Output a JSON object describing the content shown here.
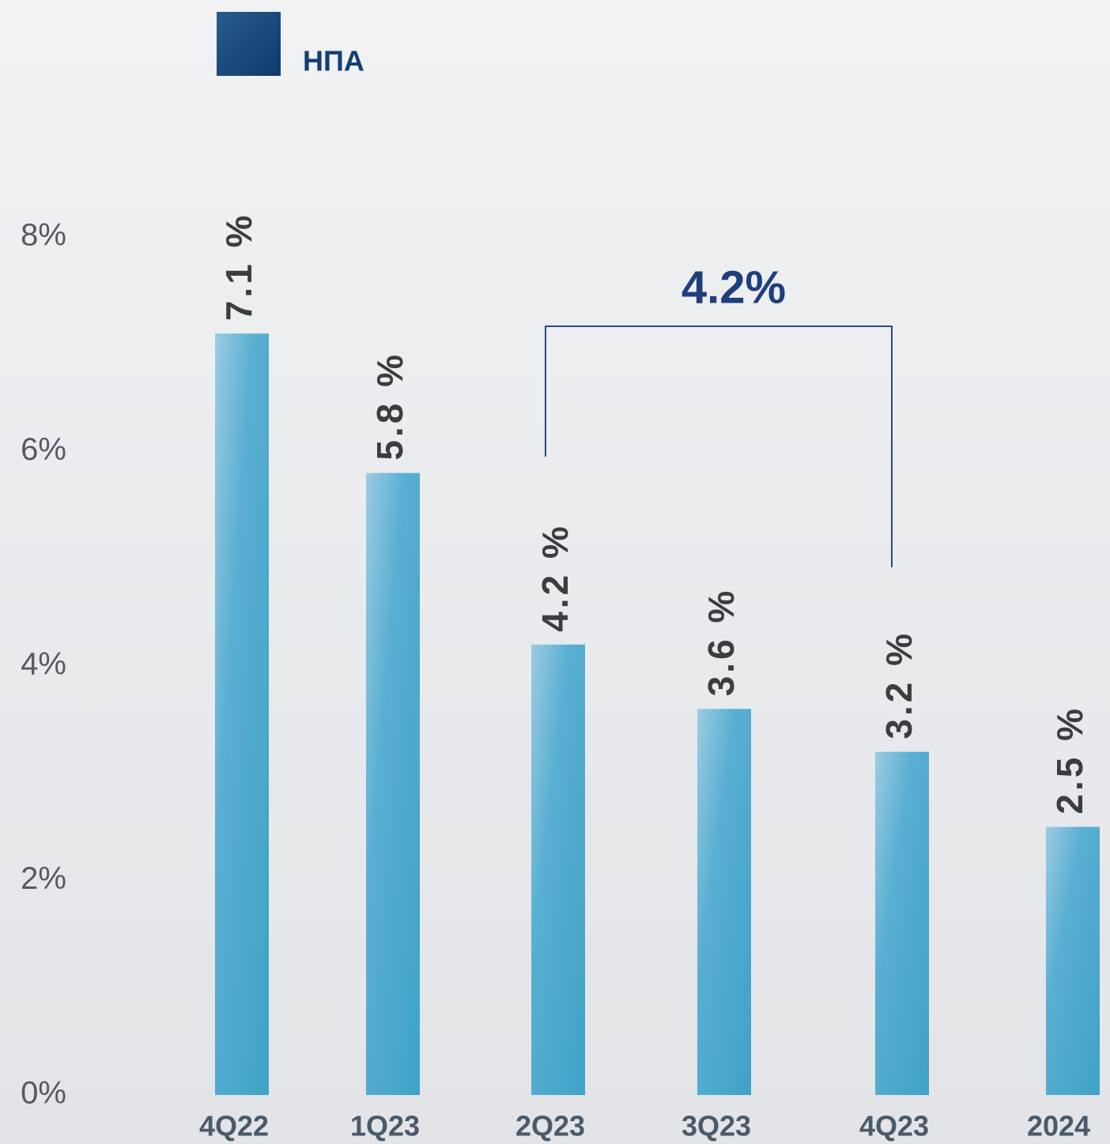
{
  "chart_data": {
    "type": "bar",
    "categories": [
      "4Q22",
      "1Q23",
      "2Q23",
      "3Q23",
      "4Q23",
      "2024"
    ],
    "series": [
      {
        "name": "НПА",
        "color": "#4aa6cb",
        "legend_color": "#123f72",
        "values": [
          7.1,
          5.8,
          4.2,
          3.6,
          3.2,
          2.5
        ],
        "value_labels": [
          "7.1 %",
          "5.8 %",
          "4.2 %",
          "3.6 %",
          "3.2 %",
          "2.5 %"
        ]
      }
    ],
    "ylim": [
      0,
      8
    ],
    "yticks": [
      {
        "value": 0,
        "label": "0%"
      },
      {
        "value": 2,
        "label": "2%"
      },
      {
        "value": 4,
        "label": "4%"
      },
      {
        "value": 6,
        "label": "6%"
      },
      {
        "value": 8,
        "label": "8%"
      }
    ],
    "grid": false,
    "annotation": "4.2%"
  }
}
